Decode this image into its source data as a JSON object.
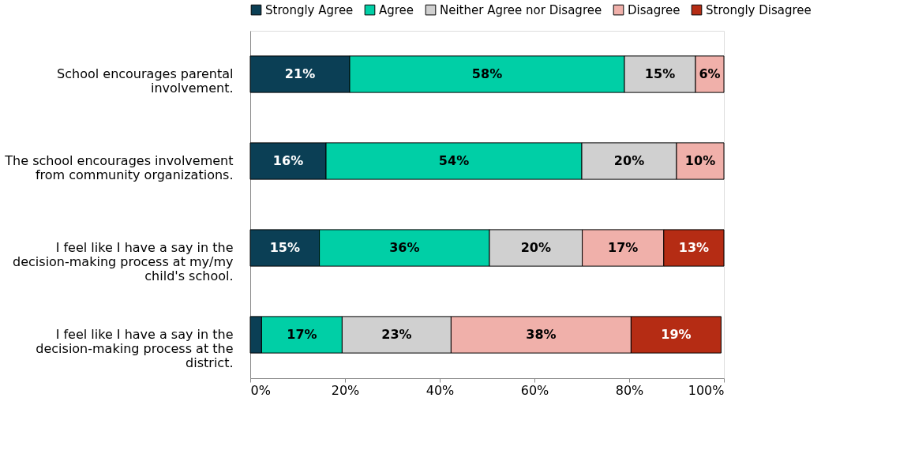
{
  "chart_data": {
    "type": "bar",
    "orientation": "horizontal",
    "stacked": true,
    "categories": [
      "School encourages parental involvement.",
      "The school encourages involvement from community organizations.",
      "I feel like I have a say in the decision-making process at my/my child's school.",
      "I feel like I have a say in the decision-making process at the district."
    ],
    "series": [
      {
        "name": "Strongly Agree",
        "color": "#0b3f55",
        "values": [
          21,
          16,
          14.6,
          2.4
        ],
        "value_labels": [
          "21%",
          "16%",
          "15%",
          null
        ]
      },
      {
        "name": "Agree",
        "color": "#00cfa6",
        "values": [
          58,
          54,
          35.9,
          17
        ],
        "value_labels": [
          "58%",
          "54%",
          "36%",
          "17%"
        ]
      },
      {
        "name": "Neither Agree nor Disagree",
        "color": "#d0d0d0",
        "values": [
          15,
          20,
          19.6,
          23
        ],
        "value_labels": [
          "15%",
          "20%",
          "20%",
          "23%"
        ]
      },
      {
        "name": "Disagree",
        "color": "#f0b0aa",
        "values": [
          6,
          10,
          17.2,
          38
        ],
        "value_labels": [
          "6%",
          "10%",
          "17%",
          "38%"
        ]
      },
      {
        "name": "Strongly Disagree",
        "color": "#b52c14",
        "values": [
          null,
          null,
          12.7,
          19
        ],
        "value_labels": [
          null,
          null,
          "13%",
          "19%"
        ]
      }
    ],
    "xlim": [
      0,
      100
    ],
    "xticks": [
      {
        "value": 0,
        "label": "0%"
      },
      {
        "value": 20,
        "label": "20%"
      },
      {
        "value": 40,
        "label": "40%"
      },
      {
        "value": 60,
        "label": "60%"
      },
      {
        "value": 80,
        "label": "80%"
      },
      {
        "value": 100,
        "label": "100%"
      }
    ],
    "grid": false,
    "legend": "top"
  }
}
